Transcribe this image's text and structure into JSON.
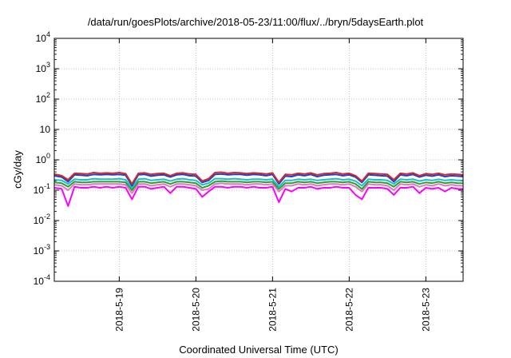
{
  "chart_data": {
    "type": "line",
    "title": "/data/run/goesPlots/archive/2018-05-23/11:00/flux/../bryn/5daysEarth.plot",
    "xlabel": "Coordinated Universal Time (UTC)",
    "ylabel": "cGy/day",
    "yscale": "log",
    "ylim": [
      0.0001,
      10000
    ],
    "xlim": [
      "2018-05-18T03:40",
      "2018-05-23T11:40"
    ],
    "grid": true,
    "y_ticks": [
      {
        "value": 0.0001,
        "base": "10",
        "exp": "-4"
      },
      {
        "value": 0.001,
        "base": "10",
        "exp": "-3"
      },
      {
        "value": 0.01,
        "base": "10",
        "exp": "-2"
      },
      {
        "value": 0.1,
        "base": "10",
        "exp": "-1"
      },
      {
        "value": 1,
        "base": "10",
        "exp": "0"
      },
      {
        "value": 10,
        "base": "10",
        "exp": ""
      },
      {
        "value": 100,
        "base": "10",
        "exp": "2"
      },
      {
        "value": 1000,
        "base": "10",
        "exp": "3"
      },
      {
        "value": 10000,
        "base": "10",
        "exp": "4"
      }
    ],
    "x_ticks": [
      {
        "value": "2018-05-19T00:00",
        "label": "2018-5-19"
      },
      {
        "value": "2018-05-20T00:00",
        "label": "2018-5-20"
      },
      {
        "value": "2018-05-21T00:00",
        "label": "2018-5-21"
      },
      {
        "value": "2018-05-22T00:00",
        "label": "2018-5-22"
      },
      {
        "value": "2018-05-23T00:00",
        "label": "2018-5-23"
      }
    ],
    "x": [
      "2018-05-18T03:40",
      "2018-05-18T06:00",
      "2018-05-18T08:00",
      "2018-05-18T10:00",
      "2018-05-18T12:00",
      "2018-05-18T14:00",
      "2018-05-18T16:00",
      "2018-05-18T18:00",
      "2018-05-18T20:00",
      "2018-05-18T22:00",
      "2018-05-19T00:00",
      "2018-05-19T02:00",
      "2018-05-19T04:00",
      "2018-05-19T06:00",
      "2018-05-19T08:00",
      "2018-05-19T10:00",
      "2018-05-19T12:00",
      "2018-05-19T14:00",
      "2018-05-19T16:00",
      "2018-05-19T18:00",
      "2018-05-19T20:00",
      "2018-05-19T22:00",
      "2018-05-20T00:00",
      "2018-05-20T02:00",
      "2018-05-20T04:00",
      "2018-05-20T06:00",
      "2018-05-20T08:00",
      "2018-05-20T10:00",
      "2018-05-20T12:00",
      "2018-05-20T14:00",
      "2018-05-20T16:00",
      "2018-05-20T18:00",
      "2018-05-20T20:00",
      "2018-05-20T22:00",
      "2018-05-21T00:00",
      "2018-05-21T02:00",
      "2018-05-21T04:00",
      "2018-05-21T06:00",
      "2018-05-21T08:00",
      "2018-05-21T10:00",
      "2018-05-21T12:00",
      "2018-05-21T14:00",
      "2018-05-21T16:00",
      "2018-05-21T18:00",
      "2018-05-21T20:00",
      "2018-05-21T22:00",
      "2018-05-22T00:00",
      "2018-05-22T02:00",
      "2018-05-22T04:00",
      "2018-05-22T06:00",
      "2018-05-22T08:00",
      "2018-05-22T10:00",
      "2018-05-22T12:00",
      "2018-05-22T14:00",
      "2018-05-22T16:00",
      "2018-05-22T18:00",
      "2018-05-22T20:00",
      "2018-05-22T22:00",
      "2018-05-23T00:00",
      "2018-05-23T02:00",
      "2018-05-23T04:00",
      "2018-05-23T06:00",
      "2018-05-23T08:00",
      "2018-05-23T10:00",
      "2018-05-23T11:40"
    ],
    "series": [
      {
        "color": "#d62728",
        "values": [
          0.34,
          0.3,
          0.22,
          0.36,
          0.35,
          0.34,
          0.38,
          0.36,
          0.37,
          0.36,
          0.38,
          0.35,
          0.16,
          0.36,
          0.37,
          0.33,
          0.35,
          0.36,
          0.3,
          0.36,
          0.37,
          0.34,
          0.33,
          0.2,
          0.24,
          0.38,
          0.39,
          0.36,
          0.38,
          0.37,
          0.35,
          0.37,
          0.36,
          0.34,
          0.37,
          0.18,
          0.33,
          0.32,
          0.36,
          0.34,
          0.37,
          0.32,
          0.35,
          0.36,
          0.38,
          0.34,
          0.36,
          0.3,
          0.2,
          0.36,
          0.35,
          0.34,
          0.33,
          0.22,
          0.36,
          0.34,
          0.37,
          0.3,
          0.35,
          0.33,
          0.36,
          0.32,
          0.34,
          0.33,
          0.32
        ]
      },
      {
        "color": "#1f3fcf",
        "values": [
          0.3,
          0.27,
          0.19,
          0.32,
          0.31,
          0.3,
          0.33,
          0.32,
          0.33,
          0.32,
          0.33,
          0.31,
          0.14,
          0.32,
          0.33,
          0.29,
          0.31,
          0.32,
          0.27,
          0.32,
          0.33,
          0.3,
          0.29,
          0.18,
          0.21,
          0.33,
          0.34,
          0.32,
          0.33,
          0.33,
          0.31,
          0.33,
          0.32,
          0.3,
          0.33,
          0.16,
          0.29,
          0.28,
          0.32,
          0.3,
          0.33,
          0.28,
          0.31,
          0.32,
          0.33,
          0.3,
          0.32,
          0.27,
          0.18,
          0.32,
          0.31,
          0.3,
          0.29,
          0.19,
          0.32,
          0.3,
          0.33,
          0.27,
          0.31,
          0.29,
          0.32,
          0.28,
          0.3,
          0.29,
          0.28
        ]
      },
      {
        "color": "#17becf",
        "values": [
          0.22,
          0.21,
          0.16,
          0.23,
          0.22,
          0.22,
          0.24,
          0.23,
          0.23,
          0.23,
          0.24,
          0.22,
          0.12,
          0.23,
          0.24,
          0.21,
          0.22,
          0.23,
          0.2,
          0.23,
          0.24,
          0.22,
          0.21,
          0.15,
          0.17,
          0.24,
          0.24,
          0.23,
          0.24,
          0.23,
          0.22,
          0.23,
          0.23,
          0.22,
          0.23,
          0.13,
          0.21,
          0.21,
          0.23,
          0.22,
          0.23,
          0.21,
          0.22,
          0.23,
          0.24,
          0.22,
          0.23,
          0.2,
          0.14,
          0.23,
          0.22,
          0.22,
          0.21,
          0.16,
          0.23,
          0.22,
          0.23,
          0.2,
          0.22,
          0.21,
          0.23,
          0.21,
          0.22,
          0.21,
          0.21
        ]
      },
      {
        "color": "#2ca02c",
        "values": [
          0.18,
          0.17,
          0.13,
          0.19,
          0.18,
          0.18,
          0.19,
          0.19,
          0.19,
          0.19,
          0.19,
          0.18,
          0.1,
          0.19,
          0.19,
          0.17,
          0.18,
          0.19,
          0.16,
          0.19,
          0.19,
          0.18,
          0.17,
          0.12,
          0.14,
          0.19,
          0.2,
          0.19,
          0.19,
          0.19,
          0.18,
          0.19,
          0.19,
          0.18,
          0.19,
          0.11,
          0.17,
          0.17,
          0.19,
          0.18,
          0.19,
          0.17,
          0.18,
          0.19,
          0.19,
          0.18,
          0.19,
          0.16,
          0.11,
          0.19,
          0.18,
          0.18,
          0.17,
          0.13,
          0.19,
          0.18,
          0.19,
          0.16,
          0.18,
          0.17,
          0.19,
          0.17,
          0.18,
          0.17,
          0.17
        ]
      },
      {
        "color": "#e377c2",
        "values": [
          0.15,
          0.14,
          0.1,
          0.16,
          0.15,
          0.15,
          0.16,
          0.16,
          0.16,
          0.16,
          0.16,
          0.15,
          0.08,
          0.16,
          0.16,
          0.14,
          0.15,
          0.16,
          0.13,
          0.16,
          0.16,
          0.15,
          0.14,
          0.1,
          0.11,
          0.16,
          0.17,
          0.16,
          0.16,
          0.16,
          0.15,
          0.16,
          0.16,
          0.15,
          0.16,
          0.09,
          0.14,
          0.14,
          0.16,
          0.15,
          0.16,
          0.14,
          0.15,
          0.16,
          0.16,
          0.15,
          0.16,
          0.13,
          0.09,
          0.16,
          0.15,
          0.15,
          0.14,
          0.1,
          0.16,
          0.15,
          0.16,
          0.13,
          0.15,
          0.14,
          0.16,
          0.14,
          0.15,
          0.14,
          0.14
        ]
      },
      {
        "color": "#ff00ff",
        "values": [
          0.12,
          0.11,
          0.03,
          0.13,
          0.12,
          0.12,
          0.13,
          0.12,
          0.13,
          0.12,
          0.13,
          0.12,
          0.05,
          0.13,
          0.13,
          0.11,
          0.12,
          0.13,
          0.08,
          0.13,
          0.13,
          0.12,
          0.11,
          0.06,
          0.09,
          0.13,
          0.13,
          0.12,
          0.13,
          0.13,
          0.12,
          0.13,
          0.12,
          0.12,
          0.13,
          0.04,
          0.11,
          0.09,
          0.12,
          0.12,
          0.13,
          0.11,
          0.12,
          0.12,
          0.13,
          0.12,
          0.12,
          0.07,
          0.05,
          0.12,
          0.12,
          0.12,
          0.11,
          0.07,
          0.12,
          0.12,
          0.13,
          0.08,
          0.12,
          0.11,
          0.12,
          0.09,
          0.12,
          0.11,
          0.11
        ]
      }
    ]
  }
}
